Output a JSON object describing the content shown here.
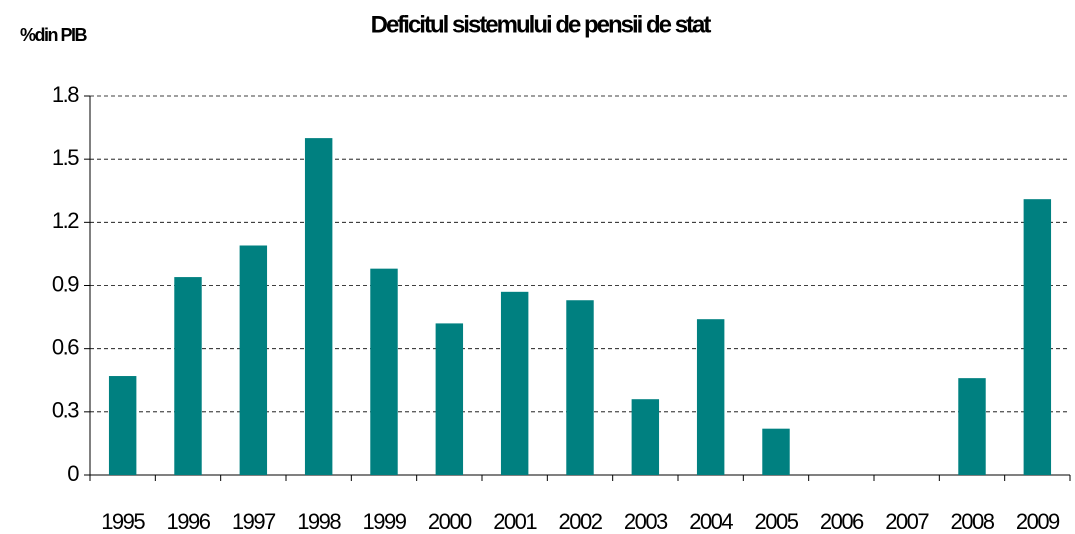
{
  "chart_data": {
    "type": "bar",
    "title": "Deficitul sistemului de pensii de stat",
    "y_label": "%din PIB",
    "categories": [
      "1995",
      "1996",
      "1997",
      "1998",
      "1999",
      "2000",
      "2001",
      "2002",
      "2003",
      "2004",
      "2005",
      "2006",
      "2007",
      "2008",
      "2009"
    ],
    "values": [
      0.47,
      0.94,
      1.09,
      1.6,
      0.98,
      0.72,
      0.87,
      0.83,
      0.36,
      0.74,
      0.22,
      0,
      0,
      0.46,
      1.31
    ],
    "color": "#008080",
    "ylim": [
      0,
      1.8
    ],
    "yticks": [
      0,
      0.3,
      0.6,
      0.9,
      1.2,
      1.5,
      1.8
    ],
    "grid": true
  }
}
